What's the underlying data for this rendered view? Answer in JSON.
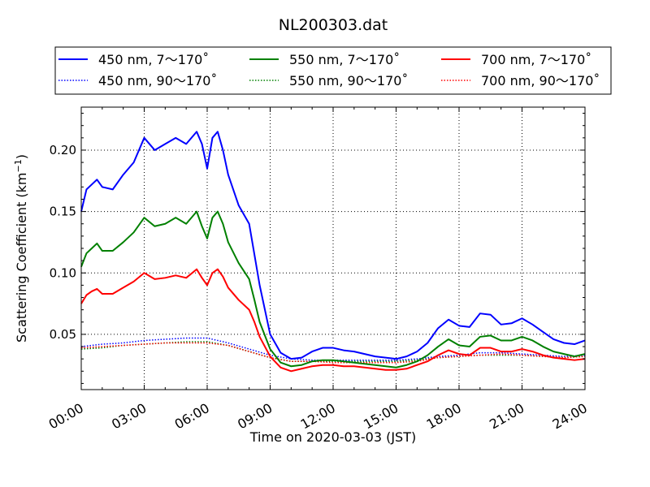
{
  "chart_data": {
    "type": "line",
    "title": "NL200303.dat",
    "xlabel": "Time on 2020-03-03 (JST)",
    "ylabel": "Scattering Coefficient (km",
    "ylabel_sup": "−1",
    "ylabel_close": ")",
    "xlim": [
      0,
      24
    ],
    "ylim": [
      0.005,
      0.235
    ],
    "grid": true,
    "legend_position": "top",
    "x_tick_values": [
      0,
      3,
      6,
      9,
      12,
      15,
      18,
      21,
      24
    ],
    "x_tick_labels": [
      "00:00",
      "03:00",
      "06:00",
      "09:00",
      "12:00",
      "15:00",
      "18:00",
      "21:00",
      "24:00"
    ],
    "y_tick_values": [
      0.05,
      0.1,
      0.15,
      0.2
    ],
    "y_tick_labels": [
      "0.05",
      "0.10",
      "0.15",
      "0.20"
    ],
    "series": [
      {
        "name": "450 nm, 7～170˚",
        "color": "#0000ff",
        "style": "solid",
        "x": [
          0,
          0.25,
          0.5,
          0.75,
          1,
          1.5,
          2,
          2.5,
          3,
          3.5,
          4,
          4.5,
          5,
          5.5,
          5.75,
          6,
          6.25,
          6.5,
          6.75,
          7,
          7.5,
          8,
          8.25,
          8.5,
          9,
          9.5,
          10,
          10.5,
          11,
          11.5,
          12,
          12.5,
          13,
          13.5,
          14,
          14.5,
          15,
          15.5,
          16,
          16.5,
          17,
          17.5,
          18,
          18.5,
          19,
          19.5,
          20,
          20.5,
          21,
          21.5,
          22,
          22.5,
          23,
          23.5,
          24
        ],
        "y": [
          0.15,
          0.168,
          0.172,
          0.176,
          0.17,
          0.168,
          0.18,
          0.19,
          0.21,
          0.2,
          0.205,
          0.21,
          0.205,
          0.215,
          0.205,
          0.185,
          0.21,
          0.215,
          0.2,
          0.18,
          0.155,
          0.14,
          0.115,
          0.09,
          0.05,
          0.035,
          0.03,
          0.031,
          0.036,
          0.039,
          0.039,
          0.037,
          0.036,
          0.034,
          0.032,
          0.031,
          0.03,
          0.032,
          0.036,
          0.043,
          0.055,
          0.062,
          0.057,
          0.056,
          0.067,
          0.066,
          0.058,
          0.059,
          0.063,
          0.058,
          0.052,
          0.046,
          0.043,
          0.042,
          0.045
        ]
      },
      {
        "name": "550 nm, 7～170˚",
        "color": "#008000",
        "style": "solid",
        "x": [
          0,
          0.25,
          0.5,
          0.75,
          1,
          1.5,
          2,
          2.5,
          3,
          3.5,
          4,
          4.5,
          5,
          5.5,
          5.75,
          6,
          6.25,
          6.5,
          6.75,
          7,
          7.5,
          8,
          8.25,
          8.5,
          9,
          9.5,
          10,
          10.5,
          11,
          11.5,
          12,
          12.5,
          13,
          13.5,
          14,
          14.5,
          15,
          15.5,
          16,
          16.5,
          17,
          17.5,
          18,
          18.5,
          19,
          19.5,
          20,
          20.5,
          21,
          21.5,
          22,
          22.5,
          23,
          23.5,
          24
        ],
        "y": [
          0.105,
          0.116,
          0.12,
          0.124,
          0.118,
          0.118,
          0.125,
          0.133,
          0.145,
          0.138,
          0.14,
          0.145,
          0.14,
          0.15,
          0.138,
          0.128,
          0.145,
          0.15,
          0.14,
          0.125,
          0.108,
          0.095,
          0.078,
          0.06,
          0.038,
          0.027,
          0.024,
          0.025,
          0.028,
          0.029,
          0.029,
          0.028,
          0.027,
          0.026,
          0.025,
          0.024,
          0.023,
          0.025,
          0.028,
          0.033,
          0.04,
          0.046,
          0.041,
          0.04,
          0.048,
          0.049,
          0.045,
          0.045,
          0.048,
          0.045,
          0.04,
          0.036,
          0.034,
          0.032,
          0.034
        ]
      },
      {
        "name": "700 nm, 7～170˚",
        "color": "#ff0000",
        "style": "solid",
        "x": [
          0,
          0.25,
          0.5,
          0.75,
          1,
          1.5,
          2,
          2.5,
          3,
          3.5,
          4,
          4.5,
          5,
          5.5,
          5.75,
          6,
          6.25,
          6.5,
          6.75,
          7,
          7.5,
          8,
          8.25,
          8.5,
          9,
          9.5,
          10,
          10.5,
          11,
          11.5,
          12,
          12.5,
          13,
          13.5,
          14,
          14.5,
          15,
          15.5,
          16,
          16.5,
          17,
          17.5,
          18,
          18.5,
          19,
          19.5,
          20,
          20.5,
          21,
          21.5,
          22,
          22.5,
          23,
          23.5,
          24
        ],
        "y": [
          0.075,
          0.082,
          0.085,
          0.087,
          0.083,
          0.083,
          0.088,
          0.093,
          0.1,
          0.095,
          0.096,
          0.098,
          0.096,
          0.103,
          0.096,
          0.09,
          0.1,
          0.103,
          0.097,
          0.088,
          0.078,
          0.07,
          0.06,
          0.048,
          0.032,
          0.023,
          0.02,
          0.022,
          0.024,
          0.025,
          0.025,
          0.024,
          0.024,
          0.023,
          0.022,
          0.021,
          0.021,
          0.022,
          0.025,
          0.028,
          0.033,
          0.037,
          0.034,
          0.033,
          0.039,
          0.039,
          0.036,
          0.036,
          0.038,
          0.036,
          0.033,
          0.031,
          0.03,
          0.029,
          0.03
        ]
      },
      {
        "name": "450 nm, 90～170˚",
        "color": "#0000ff",
        "style": "dotted",
        "x": [
          0,
          1,
          2,
          3,
          4,
          5,
          6,
          7,
          8,
          9,
          10,
          11,
          12,
          13,
          14,
          15,
          16,
          17,
          18,
          19,
          20,
          21,
          22,
          23,
          24
        ],
        "y": [
          0.04,
          0.042,
          0.043,
          0.045,
          0.046,
          0.047,
          0.047,
          0.043,
          0.038,
          0.033,
          0.03,
          0.029,
          0.029,
          0.029,
          0.029,
          0.029,
          0.03,
          0.032,
          0.033,
          0.035,
          0.035,
          0.034,
          0.033,
          0.032,
          0.033
        ]
      },
      {
        "name": "550 nm, 90～170˚",
        "color": "#008000",
        "style": "dotted",
        "x": [
          0,
          1,
          2,
          3,
          4,
          5,
          6,
          7,
          8,
          9,
          10,
          11,
          12,
          13,
          14,
          15,
          16,
          17,
          18,
          19,
          20,
          21,
          22,
          23,
          24
        ],
        "y": [
          0.038,
          0.039,
          0.041,
          0.042,
          0.043,
          0.044,
          0.044,
          0.041,
          0.036,
          0.031,
          0.028,
          0.028,
          0.028,
          0.028,
          0.028,
          0.028,
          0.029,
          0.031,
          0.032,
          0.033,
          0.033,
          0.033,
          0.032,
          0.031,
          0.032
        ]
      },
      {
        "name": "700 nm, 90～170˚",
        "color": "#ff0000",
        "style": "dotted",
        "x": [
          0,
          1,
          2,
          3,
          4,
          5,
          6,
          7,
          8,
          9,
          10,
          11,
          12,
          13,
          14,
          15,
          16,
          17,
          18,
          19,
          20,
          21,
          22,
          23,
          24
        ],
        "y": [
          0.039,
          0.04,
          0.041,
          0.042,
          0.043,
          0.043,
          0.043,
          0.041,
          0.036,
          0.031,
          0.028,
          0.028,
          0.027,
          0.027,
          0.027,
          0.027,
          0.028,
          0.031,
          0.032,
          0.033,
          0.034,
          0.033,
          0.032,
          0.031,
          0.032
        ]
      }
    ]
  }
}
